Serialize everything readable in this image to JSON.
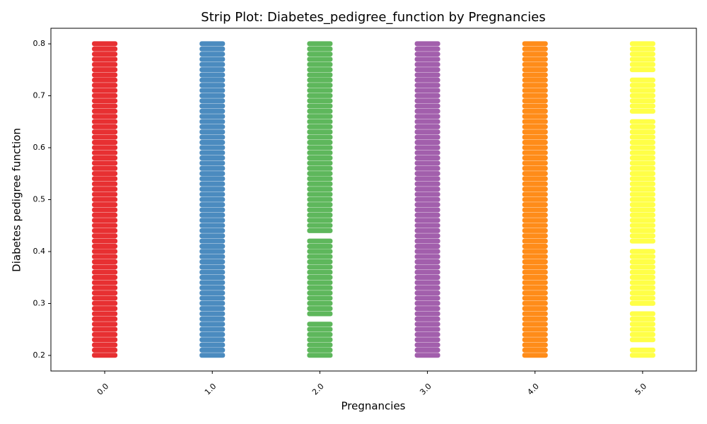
{
  "chart_data": {
    "type": "strip",
    "title": "Strip Plot: Diabetes_pedigree_function by Pregnancies",
    "x_label": "Pregnancies",
    "y_label": "Diabetes pedigree function",
    "categories": [
      "0.0",
      "1.0",
      "2.0",
      "3.0",
      "4.0",
      "5.0"
    ],
    "ylim": [
      0.17,
      0.83
    ],
    "yticks": [
      0.2,
      0.3,
      0.4,
      0.5,
      0.6,
      0.7,
      0.8
    ],
    "series": [
      {
        "color": "#e41a1c",
        "values": [
          0.2,
          0.21,
          0.22,
          0.23,
          0.24,
          0.25,
          0.26,
          0.27,
          0.28,
          0.29,
          0.3,
          0.31,
          0.32,
          0.33,
          0.34,
          0.35,
          0.36,
          0.37,
          0.38,
          0.39,
          0.4,
          0.41,
          0.42,
          0.43,
          0.44,
          0.45,
          0.46,
          0.47,
          0.48,
          0.49,
          0.5,
          0.51,
          0.52,
          0.53,
          0.54,
          0.55,
          0.56,
          0.57,
          0.58,
          0.59,
          0.6,
          0.61,
          0.62,
          0.63,
          0.64,
          0.65,
          0.66,
          0.67,
          0.68,
          0.69,
          0.7,
          0.71,
          0.72,
          0.73,
          0.74,
          0.75,
          0.76,
          0.77,
          0.78,
          0.79,
          0.8
        ]
      },
      {
        "color": "#377eb8",
        "values": [
          0.2,
          0.21,
          0.22,
          0.23,
          0.24,
          0.25,
          0.26,
          0.27,
          0.28,
          0.29,
          0.3,
          0.31,
          0.32,
          0.33,
          0.34,
          0.35,
          0.36,
          0.37,
          0.38,
          0.39,
          0.4,
          0.41,
          0.42,
          0.43,
          0.44,
          0.45,
          0.46,
          0.47,
          0.48,
          0.49,
          0.5,
          0.51,
          0.52,
          0.53,
          0.54,
          0.55,
          0.56,
          0.57,
          0.58,
          0.59,
          0.6,
          0.61,
          0.62,
          0.63,
          0.64,
          0.65,
          0.66,
          0.67,
          0.68,
          0.69,
          0.7,
          0.71,
          0.72,
          0.73,
          0.74,
          0.75,
          0.76,
          0.77,
          0.78,
          0.79,
          0.8
        ]
      },
      {
        "color": "#4daf4a",
        "values": [
          0.2,
          0.21,
          0.22,
          0.23,
          0.24,
          0.25,
          0.26,
          0.28,
          0.29,
          0.3,
          0.31,
          0.32,
          0.33,
          0.34,
          0.35,
          0.36,
          0.37,
          0.38,
          0.39,
          0.4,
          0.41,
          0.42,
          0.44,
          0.45,
          0.46,
          0.47,
          0.48,
          0.49,
          0.5,
          0.51,
          0.52,
          0.53,
          0.54,
          0.55,
          0.56,
          0.57,
          0.58,
          0.59,
          0.6,
          0.61,
          0.62,
          0.63,
          0.64,
          0.65,
          0.66,
          0.67,
          0.68,
          0.69,
          0.7,
          0.71,
          0.72,
          0.73,
          0.74,
          0.75,
          0.76,
          0.77,
          0.78,
          0.79,
          0.8
        ]
      },
      {
        "color": "#984ea3",
        "values": [
          0.2,
          0.21,
          0.22,
          0.23,
          0.24,
          0.25,
          0.26,
          0.27,
          0.28,
          0.29,
          0.3,
          0.31,
          0.32,
          0.33,
          0.34,
          0.35,
          0.36,
          0.37,
          0.38,
          0.39,
          0.4,
          0.41,
          0.42,
          0.43,
          0.44,
          0.45,
          0.46,
          0.47,
          0.48,
          0.49,
          0.5,
          0.51,
          0.52,
          0.53,
          0.54,
          0.55,
          0.56,
          0.57,
          0.58,
          0.59,
          0.6,
          0.61,
          0.62,
          0.63,
          0.64,
          0.65,
          0.66,
          0.67,
          0.68,
          0.69,
          0.7,
          0.71,
          0.72,
          0.73,
          0.74,
          0.75,
          0.76,
          0.77,
          0.78,
          0.79,
          0.8
        ]
      },
      {
        "color": "#ff7f00",
        "values": [
          0.2,
          0.21,
          0.22,
          0.23,
          0.24,
          0.25,
          0.26,
          0.27,
          0.28,
          0.29,
          0.3,
          0.31,
          0.32,
          0.33,
          0.34,
          0.35,
          0.36,
          0.37,
          0.38,
          0.39,
          0.4,
          0.41,
          0.42,
          0.43,
          0.44,
          0.45,
          0.46,
          0.47,
          0.48,
          0.49,
          0.5,
          0.51,
          0.52,
          0.53,
          0.54,
          0.55,
          0.56,
          0.57,
          0.58,
          0.59,
          0.6,
          0.61,
          0.62,
          0.63,
          0.64,
          0.65,
          0.66,
          0.67,
          0.68,
          0.69,
          0.7,
          0.71,
          0.72,
          0.73,
          0.74,
          0.75,
          0.76,
          0.77,
          0.78,
          0.79,
          0.8
        ]
      },
      {
        "color": "#ffff33",
        "values": [
          0.2,
          0.21,
          0.23,
          0.24,
          0.25,
          0.26,
          0.27,
          0.28,
          0.3,
          0.31,
          0.32,
          0.33,
          0.34,
          0.35,
          0.36,
          0.37,
          0.38,
          0.39,
          0.4,
          0.42,
          0.43,
          0.44,
          0.45,
          0.46,
          0.47,
          0.48,
          0.49,
          0.5,
          0.51,
          0.52,
          0.53,
          0.54,
          0.55,
          0.56,
          0.57,
          0.58,
          0.59,
          0.6,
          0.61,
          0.62,
          0.63,
          0.64,
          0.65,
          0.67,
          0.68,
          0.69,
          0.7,
          0.71,
          0.72,
          0.73,
          0.75,
          0.76,
          0.77,
          0.78,
          0.79,
          0.8
        ]
      }
    ]
  }
}
